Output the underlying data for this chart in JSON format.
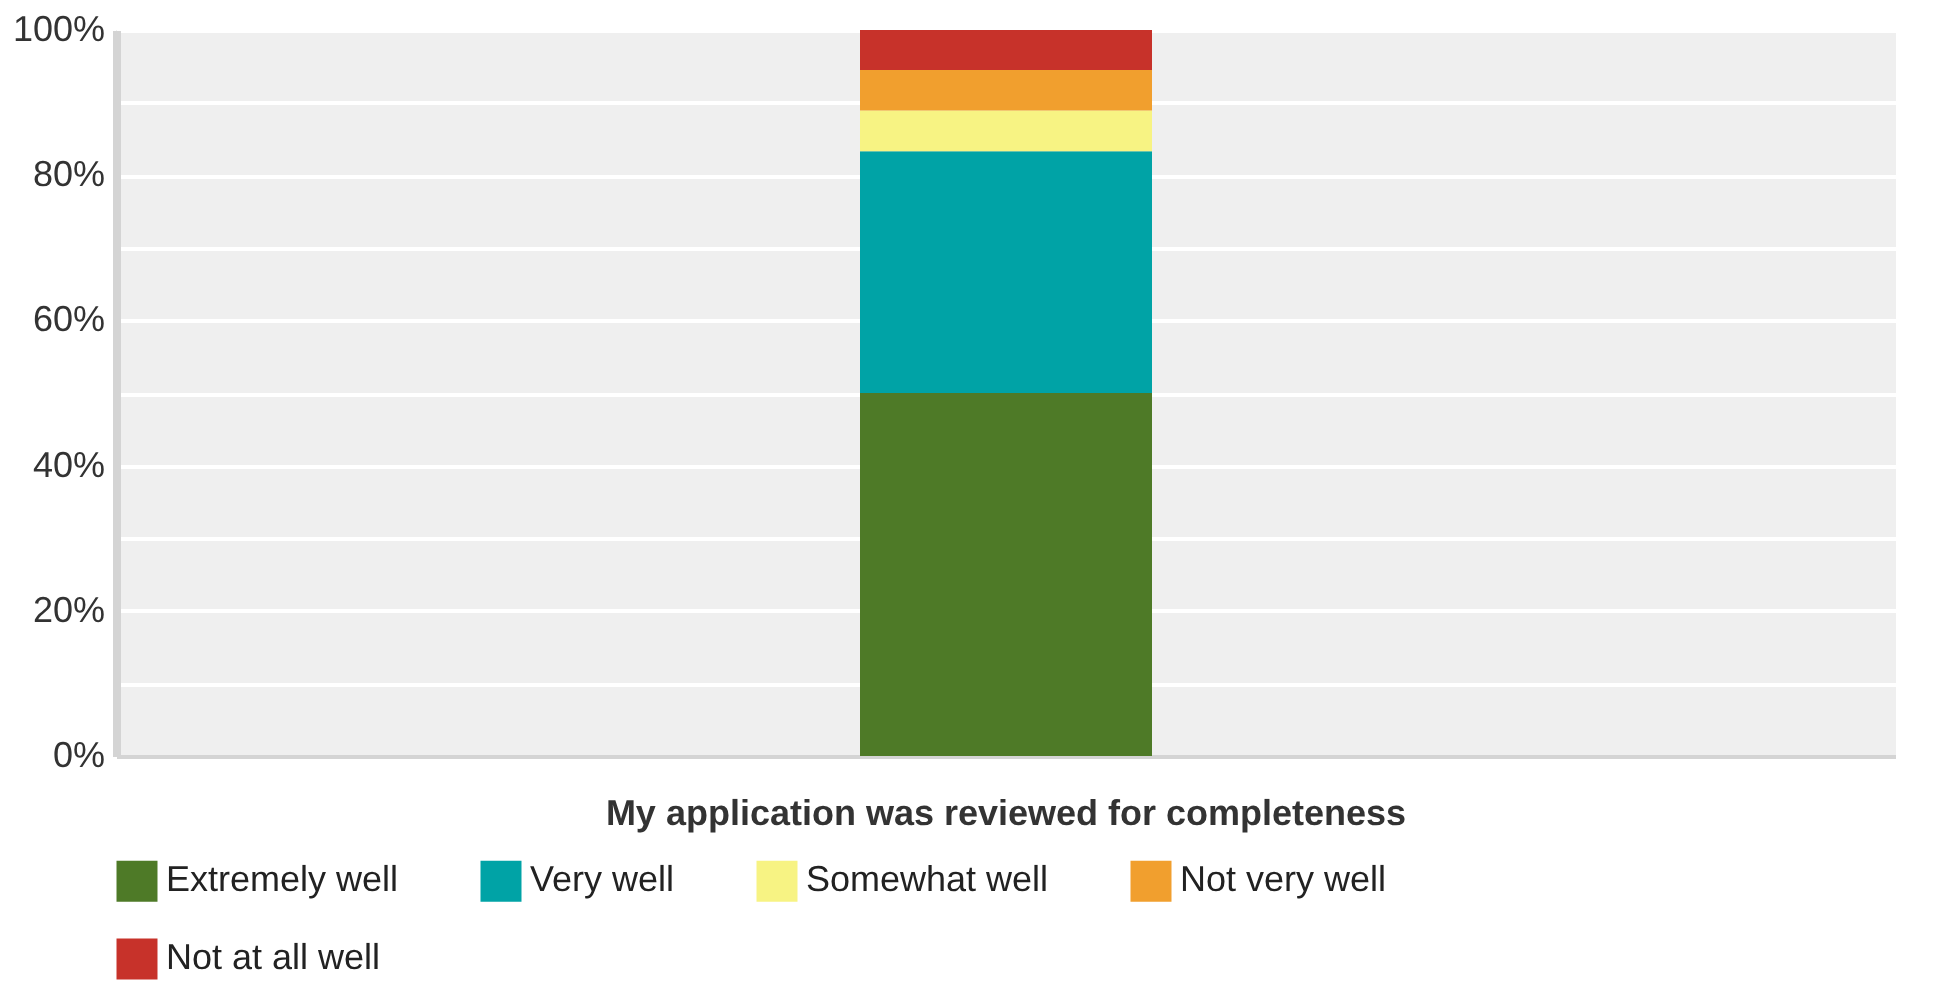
{
  "chart_data": {
    "type": "bar",
    "stacked": true,
    "categories": [
      "My application was reviewed for completeness"
    ],
    "series": [
      {
        "name": "Extremely well",
        "color": "#4e7a27",
        "values": [
          50
        ]
      },
      {
        "name": "Very well",
        "color": "#00a3a6",
        "values": [
          33.3
        ]
      },
      {
        "name": "Somewhat well",
        "color": "#f7f383",
        "values": [
          5.6
        ]
      },
      {
        "name": "Not very well",
        "color": "#f19f2e",
        "values": [
          5.6
        ]
      },
      {
        "name": "Not at all well",
        "color": "#c7322a",
        "values": [
          5.5
        ]
      }
    ],
    "ylim": [
      0,
      100
    ],
    "yticks": [
      {
        "value": 0,
        "label": "0%"
      },
      {
        "value": 10,
        "label": null
      },
      {
        "value": 20,
        "label": "20%"
      },
      {
        "value": 30,
        "label": null
      },
      {
        "value": 40,
        "label": "40%"
      },
      {
        "value": 50,
        "label": null
      },
      {
        "value": 60,
        "label": "60%"
      },
      {
        "value": 70,
        "label": null
      },
      {
        "value": 80,
        "label": "80%"
      },
      {
        "value": 90,
        "label": null
      },
      {
        "value": 100,
        "label": "100%"
      }
    ],
    "grid": "y",
    "legend": "bottom"
  }
}
